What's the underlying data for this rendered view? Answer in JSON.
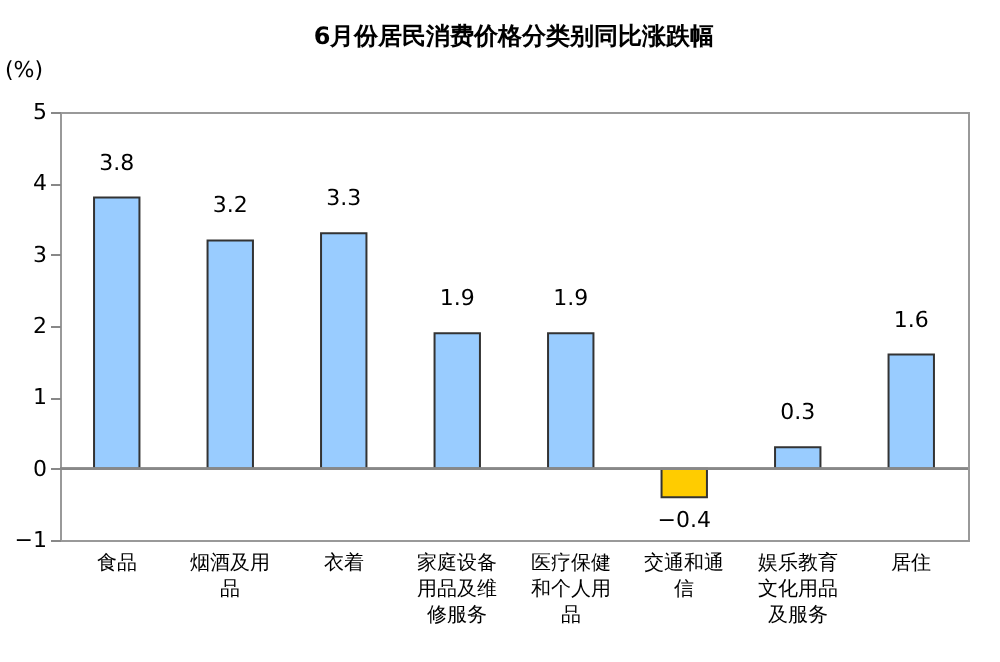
{
  "chart_data": {
    "type": "bar",
    "title": "6月份居民消费价格分类别同比涨跌幅",
    "ylabel": "(%)",
    "categories": [
      "食品",
      "烟酒及用品",
      "衣着",
      "家庭设备用品及维修服务",
      "医疗保健和个人用品",
      "交通和通信",
      "娱乐教育文化用品及服务",
      "居住"
    ],
    "values": [
      3.8,
      3.2,
      3.3,
      1.9,
      1.9,
      -0.4,
      0.3,
      1.6
    ],
    "colors": [
      "#99ccff",
      "#99ccff",
      "#99ccff",
      "#99ccff",
      "#99ccff",
      "#ffcc00",
      "#99ccff",
      "#99ccff"
    ],
    "ylim": [
      -1,
      5
    ],
    "yticks": [
      -1,
      0,
      1,
      2,
      3,
      4,
      5
    ],
    "ref_lines": [
      {
        "axis": "y",
        "value": 0
      }
    ],
    "data_labels": true
  }
}
